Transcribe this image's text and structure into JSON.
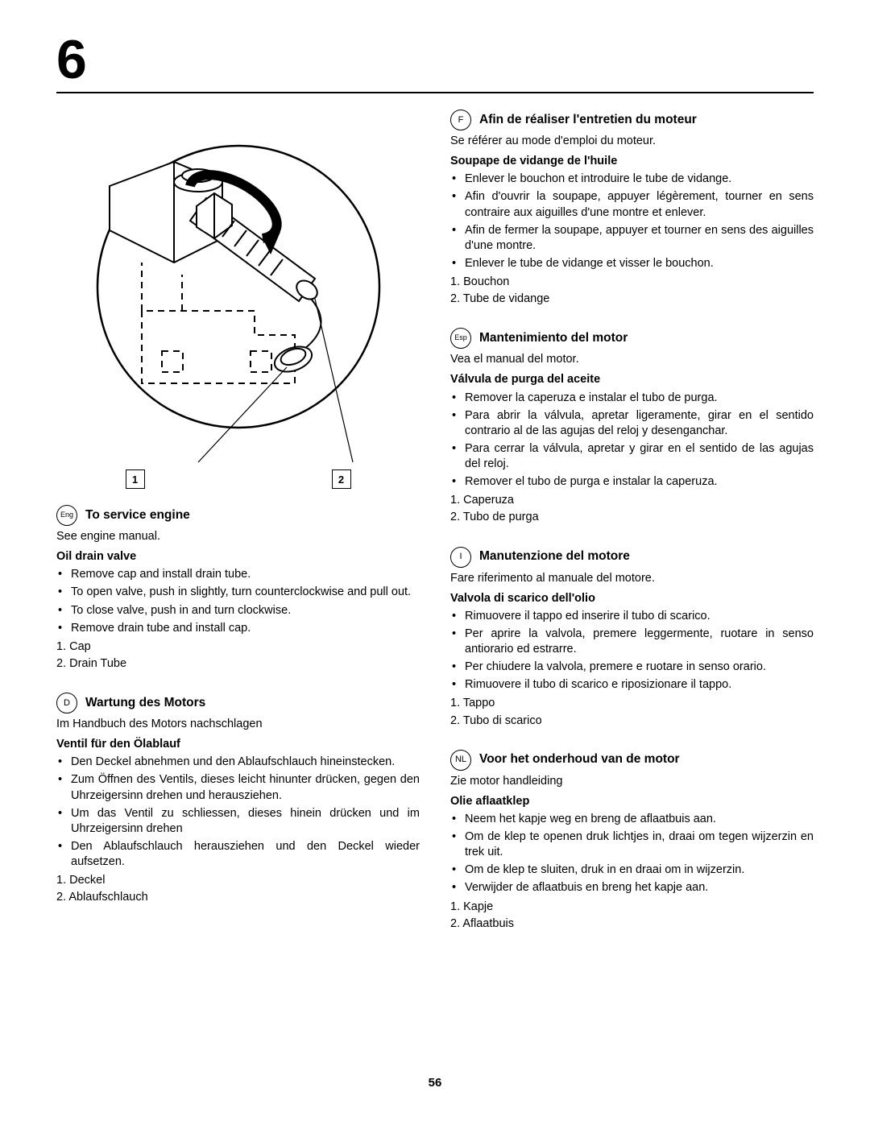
{
  "chapter": "6",
  "page_number": "56",
  "diagram": {
    "callouts": [
      "1",
      "2"
    ],
    "stroke": "#000000",
    "fill": "#ffffff"
  },
  "left_sections": [
    {
      "lang": "Eng",
      "title": "To service engine",
      "intro": "See engine manual.",
      "subheading": "Oil drain valve",
      "bullets": [
        "Remove cap and install drain tube.",
        "To open valve, push in slightly, turn counterclockwise and pull out.",
        "To close valve, push in and turn clockwise.",
        "Remove drain tube and install cap."
      ],
      "numbered": [
        "Cap",
        "Drain Tube"
      ]
    },
    {
      "lang": "D",
      "title": "Wartung des Motors",
      "intro": "Im Handbuch des Motors nachschlagen",
      "subheading": "Ventil für den Ölablauf",
      "bullets": [
        "Den Deckel abnehmen und den Ablaufschlauch hineinstecken.",
        "Zum Öffnen des Ventils, dieses leicht hinunter drücken, gegen den Uhrzeigersinn drehen und herausziehen.",
        "Um das Ventil zu schliessen, dieses hinein drücken und im Uhrzeigersinn drehen",
        "Den Ablaufschlauch herausziehen und den Deckel wieder aufsetzen."
      ],
      "numbered": [
        "Deckel",
        "Ablaufschlauch"
      ]
    }
  ],
  "right_sections": [
    {
      "lang": "F",
      "title": "Afin de réaliser l'entretien du moteur",
      "intro": "Se référer au mode d'emploi du moteur.",
      "subheading": "Soupape de vidange de l'huile",
      "bullets": [
        "Enlever le bouchon et introduire le tube de vidange.",
        "Afin d'ouvrir la soupape, appuyer légèrement, tourner en sens contraire aux aiguilles d'une montre et enlever.",
        "Afin de fermer la soupape, appuyer et tourner en sens des aiguilles d'une montre.",
        "Enlever le tube de vidange et visser le bouchon."
      ],
      "numbered": [
        "Bouchon",
        "Tube de vidange"
      ]
    },
    {
      "lang": "Esp",
      "title": "Mantenimiento del motor",
      "intro": "Vea el manual del motor.",
      "subheading": "Válvula de purga del aceite",
      "bullets": [
        "Remover la caperuza e instalar el tubo de purga.",
        "Para abrir la válvula, apretar ligeramente, girar en el sentido contrario al de las agujas del reloj y desenganchar.",
        "Para cerrar la válvula, apretar y girar en el sentido de las agujas del reloj.",
        "Remover el tubo de purga e instalar la caperuza."
      ],
      "numbered": [
        "Caperuza",
        "Tubo de purga"
      ]
    },
    {
      "lang": "I",
      "title": "Manutenzione del motore",
      "intro": "Fare riferimento al manuale del motore.",
      "subheading": "Valvola di scarico dell'olio",
      "bullets": [
        "Rimuovere il tappo ed inserire il tubo di scarico.",
        "Per aprire la valvola, premere leggermente, ruotare in senso antiorario ed estrarre.",
        "Per chiudere la valvola, premere e ruotare in senso orario.",
        "Rimuovere il tubo di scarico e riposizionare il tappo."
      ],
      "numbered": [
        "Tappo",
        "Tubo di scarico"
      ]
    },
    {
      "lang": "NL",
      "title": "Voor het onderhoud van de motor",
      "intro": "Zie motor handleiding",
      "subheading": "Olie aflaatklep",
      "bullets": [
        "Neem het kapje weg en breng de aflaatbuis aan.",
        "Om de klep te openen druk lichtjes in, draai om tegen wijzerzin en trek uit.",
        "Om de klep te sluiten, druk in en draai om in wijzerzin.",
        "Verwijder de aflaatbuis en breng het kapje aan."
      ],
      "numbered": [
        "Kapje",
        "Aflaatbuis"
      ]
    }
  ]
}
